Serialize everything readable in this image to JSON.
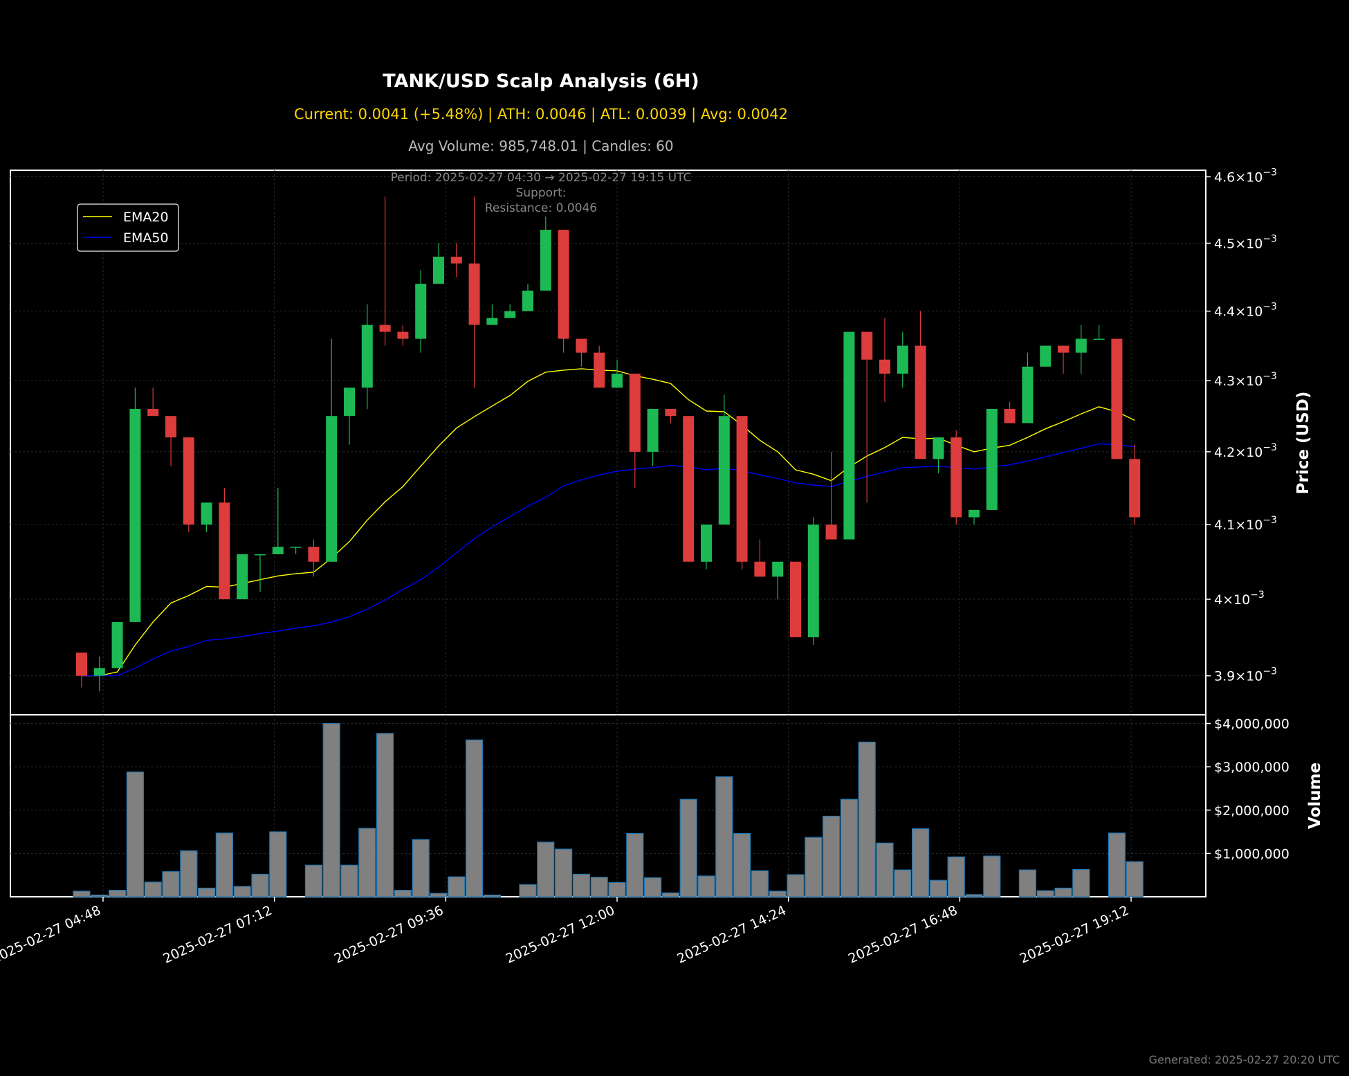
{
  "title": "TANK/USD Scalp Analysis (6H)",
  "subtitle": "Current: 0.0041 (+5.48%) | ATH: 0.0046 | ATL: 0.0039 | Avg: 0.0042",
  "subtitle2": "Avg Volume: 985,748.01 | Candles: 60",
  "annotation": {
    "period": "Period: 2025-02-27 04:30 → 2025-02-27 19:15 UTC",
    "support": "Support:",
    "resistance": "Resistance: 0.0046"
  },
  "footer": "Generated: 2025-02-27 20:20 UTC",
  "colors": {
    "background": "#000000",
    "up": "#1db954",
    "down": "#dc3c3c",
    "ema20": "#ffff00",
    "ema50": "#0000ff",
    "volume_fill": "#808080",
    "volume_edge": "#1f77b4",
    "subtitle": "#ffd700",
    "subtitle2": "#bbbbbb",
    "annotation": "#888888",
    "footer": "#777777"
  },
  "chart_data": [
    {
      "type": "candlestick",
      "ylabel": "Price (USD)",
      "yscale": "log",
      "ylim": [
        0.00385,
        0.00461
      ],
      "yticks": [
        {
          "value": 0.0039,
          "mant": "3.9"
        },
        {
          "value": 0.004,
          "mant": "4"
        },
        {
          "value": 0.0041,
          "mant": "4.1"
        },
        {
          "value": 0.0042,
          "mant": "4.2"
        },
        {
          "value": 0.0043,
          "mant": "4.3"
        },
        {
          "value": 0.0044,
          "mant": "4.4"
        },
        {
          "value": 0.0045,
          "mant": "4.5"
        },
        {
          "value": 0.0046,
          "mant": "4.6"
        }
      ],
      "grid": true,
      "legend": {
        "position": "upper-left",
        "entries": [
          "EMA20",
          "EMA50"
        ]
      },
      "candles": [
        {
          "t": "2025-02-27 04:30",
          "o": 0.00393,
          "h": 0.00393,
          "l": 0.003885,
          "c": 0.0039
        },
        {
          "t": "2025-02-27 04:45",
          "o": 0.0039,
          "h": 0.003925,
          "l": 0.00388,
          "c": 0.00391
        },
        {
          "t": "2025-02-27 05:00",
          "o": 0.00391,
          "h": 0.00397,
          "l": 0.00391,
          "c": 0.00397
        },
        {
          "t": "2025-02-27 05:15",
          "o": 0.00397,
          "h": 0.00429,
          "l": 0.00397,
          "c": 0.00426
        },
        {
          "t": "2025-02-27 05:30",
          "o": 0.00426,
          "h": 0.00429,
          "l": 0.00425,
          "c": 0.00425
        },
        {
          "t": "2025-02-27 05:45",
          "o": 0.00425,
          "h": 0.00425,
          "l": 0.00418,
          "c": 0.00422
        },
        {
          "t": "2025-02-27 06:00",
          "o": 0.00422,
          "h": 0.00422,
          "l": 0.00409,
          "c": 0.0041
        },
        {
          "t": "2025-02-27 06:15",
          "o": 0.0041,
          "h": 0.00413,
          "l": 0.00409,
          "c": 0.00413
        },
        {
          "t": "2025-02-27 06:30",
          "o": 0.00413,
          "h": 0.00415,
          "l": 0.004,
          "c": 0.004
        },
        {
          "t": "2025-02-27 06:45",
          "o": 0.004,
          "h": 0.00406,
          "l": 0.004,
          "c": 0.00406
        },
        {
          "t": "2025-02-27 07:00",
          "o": 0.00406,
          "h": 0.00406,
          "l": 0.00401,
          "c": 0.00406
        },
        {
          "t": "2025-02-27 07:15",
          "o": 0.00406,
          "h": 0.00415,
          "l": 0.00406,
          "c": 0.00407
        },
        {
          "t": "2025-02-27 07:30",
          "o": 0.00407,
          "h": 0.00407,
          "l": 0.00406,
          "c": 0.00407
        },
        {
          "t": "2025-02-27 07:45",
          "o": 0.00407,
          "h": 0.00408,
          "l": 0.00403,
          "c": 0.00405
        },
        {
          "t": "2025-02-27 08:00",
          "o": 0.00405,
          "h": 0.00436,
          "l": 0.00405,
          "c": 0.00425
        },
        {
          "t": "2025-02-27 08:15",
          "o": 0.00425,
          "h": 0.00429,
          "l": 0.00421,
          "c": 0.00429
        },
        {
          "t": "2025-02-27 08:30",
          "o": 0.00429,
          "h": 0.00441,
          "l": 0.00426,
          "c": 0.00438
        },
        {
          "t": "2025-02-27 08:45",
          "o": 0.00438,
          "h": 0.00457,
          "l": 0.00435,
          "c": 0.00437
        },
        {
          "t": "2025-02-27 09:00",
          "o": 0.00437,
          "h": 0.00438,
          "l": 0.00435,
          "c": 0.00436
        },
        {
          "t": "2025-02-27 09:15",
          "o": 0.00436,
          "h": 0.00446,
          "l": 0.00434,
          "c": 0.00444
        },
        {
          "t": "2025-02-27 09:30",
          "o": 0.00444,
          "h": 0.0045,
          "l": 0.00444,
          "c": 0.00448
        },
        {
          "t": "2025-02-27 09:45",
          "o": 0.00448,
          "h": 0.0045,
          "l": 0.00445,
          "c": 0.00447
        },
        {
          "t": "2025-02-27 10:00",
          "o": 0.00447,
          "h": 0.00457,
          "l": 0.00429,
          "c": 0.00438
        },
        {
          "t": "2025-02-27 10:15",
          "o": 0.00438,
          "h": 0.00441,
          "l": 0.00438,
          "c": 0.00439
        },
        {
          "t": "2025-02-27 10:30",
          "o": 0.00439,
          "h": 0.00441,
          "l": 0.00439,
          "c": 0.0044
        },
        {
          "t": "2025-02-27 10:45",
          "o": 0.0044,
          "h": 0.00444,
          "l": 0.0044,
          "c": 0.00443
        },
        {
          "t": "2025-02-27 11:00",
          "o": 0.00443,
          "h": 0.00454,
          "l": 0.00443,
          "c": 0.00452
        },
        {
          "t": "2025-02-27 11:15",
          "o": 0.00452,
          "h": 0.00452,
          "l": 0.00434,
          "c": 0.00436
        },
        {
          "t": "2025-02-27 11:30",
          "o": 0.00436,
          "h": 0.00436,
          "l": 0.00432,
          "c": 0.00434
        },
        {
          "t": "2025-02-27 11:45",
          "o": 0.00434,
          "h": 0.00435,
          "l": 0.00429,
          "c": 0.00429
        },
        {
          "t": "2025-02-27 12:00",
          "o": 0.00429,
          "h": 0.00433,
          "l": 0.00429,
          "c": 0.00431
        },
        {
          "t": "2025-02-27 12:15",
          "o": 0.00431,
          "h": 0.00431,
          "l": 0.00415,
          "c": 0.0042
        },
        {
          "t": "2025-02-27 12:30",
          "o": 0.0042,
          "h": 0.00426,
          "l": 0.00418,
          "c": 0.00426
        },
        {
          "t": "2025-02-27 12:45",
          "o": 0.00426,
          "h": 0.00426,
          "l": 0.00424,
          "c": 0.00425
        },
        {
          "t": "2025-02-27 13:00",
          "o": 0.00425,
          "h": 0.00425,
          "l": 0.00405,
          "c": 0.00405
        },
        {
          "t": "2025-02-27 13:15",
          "o": 0.00405,
          "h": 0.0041,
          "l": 0.00404,
          "c": 0.0041
        },
        {
          "t": "2025-02-27 13:30",
          "o": 0.0041,
          "h": 0.00428,
          "l": 0.0041,
          "c": 0.00425
        },
        {
          "t": "2025-02-27 13:45",
          "o": 0.00425,
          "h": 0.00425,
          "l": 0.00404,
          "c": 0.00405
        },
        {
          "t": "2025-02-27 14:00",
          "o": 0.00405,
          "h": 0.00408,
          "l": 0.00403,
          "c": 0.00403
        },
        {
          "t": "2025-02-27 14:15",
          "o": 0.00403,
          "h": 0.00405,
          "l": 0.004,
          "c": 0.00405
        },
        {
          "t": "2025-02-27 14:30",
          "o": 0.00405,
          "h": 0.00405,
          "l": 0.00395,
          "c": 0.00395
        },
        {
          "t": "2025-02-27 14:45",
          "o": 0.00395,
          "h": 0.00411,
          "l": 0.00394,
          "c": 0.0041
        },
        {
          "t": "2025-02-27 15:00",
          "o": 0.0041,
          "h": 0.0042,
          "l": 0.00408,
          "c": 0.00408
        },
        {
          "t": "2025-02-27 15:15",
          "o": 0.00408,
          "h": 0.00437,
          "l": 0.00408,
          "c": 0.00437
        },
        {
          "t": "2025-02-27 15:30",
          "o": 0.00437,
          "h": 0.00437,
          "l": 0.00413,
          "c": 0.00433
        },
        {
          "t": "2025-02-27 15:45",
          "o": 0.00433,
          "h": 0.00439,
          "l": 0.00427,
          "c": 0.00431
        },
        {
          "t": "2025-02-27 16:00",
          "o": 0.00431,
          "h": 0.00437,
          "l": 0.00429,
          "c": 0.00435
        },
        {
          "t": "2025-02-27 16:15",
          "o": 0.00435,
          "h": 0.0044,
          "l": 0.00419,
          "c": 0.00419
        },
        {
          "t": "2025-02-27 16:30",
          "o": 0.00419,
          "h": 0.00422,
          "l": 0.00417,
          "c": 0.00422
        },
        {
          "t": "2025-02-27 16:45",
          "o": 0.00422,
          "h": 0.00423,
          "l": 0.0041,
          "c": 0.00411
        },
        {
          "t": "2025-02-27 17:00",
          "o": 0.00411,
          "h": 0.00412,
          "l": 0.0041,
          "c": 0.00412
        },
        {
          "t": "2025-02-27 17:15",
          "o": 0.00412,
          "h": 0.00426,
          "l": 0.00412,
          "c": 0.00426
        },
        {
          "t": "2025-02-27 17:30",
          "o": 0.00426,
          "h": 0.00427,
          "l": 0.00424,
          "c": 0.00424
        },
        {
          "t": "2025-02-27 17:45",
          "o": 0.00424,
          "h": 0.00434,
          "l": 0.00424,
          "c": 0.00432
        },
        {
          "t": "2025-02-27 18:00",
          "o": 0.00432,
          "h": 0.00435,
          "l": 0.00432,
          "c": 0.00435
        },
        {
          "t": "2025-02-27 18:15",
          "o": 0.00435,
          "h": 0.00435,
          "l": 0.00431,
          "c": 0.00434
        },
        {
          "t": "2025-02-27 18:30",
          "o": 0.00434,
          "h": 0.00438,
          "l": 0.00431,
          "c": 0.00436
        },
        {
          "t": "2025-02-27 18:45",
          "o": 0.00436,
          "h": 0.00438,
          "l": 0.00436,
          "c": 0.00436
        },
        {
          "t": "2025-02-27 19:00",
          "o": 0.00436,
          "h": 0.00436,
          "l": 0.00419,
          "c": 0.00419
        },
        {
          "t": "2025-02-27 19:15",
          "o": 0.00419,
          "h": 0.00421,
          "l": 0.0041,
          "c": 0.00411
        }
      ],
      "series": [
        {
          "name": "EMA20",
          "values": [
            0.0039,
            0.0039,
            0.003905,
            0.00394,
            0.00397,
            0.003995,
            0.004005,
            0.004017,
            0.004016,
            0.004021,
            0.004026,
            0.004031,
            0.004034,
            0.004036,
            0.004055,
            0.004077,
            0.004106,
            0.004131,
            0.004152,
            0.00418,
            0.004208,
            0.004233,
            0.004249,
            0.004264,
            0.004279,
            0.004299,
            0.004312,
            0.004315,
            0.004317,
            0.004315,
            0.004314,
            0.004307,
            0.004302,
            0.004296,
            0.004273,
            0.004257,
            0.004256,
            0.004237,
            0.004216,
            0.0042,
            0.004175,
            0.004169,
            0.00416,
            0.004179,
            0.004194,
            0.004206,
            0.00422,
            0.004218,
            0.004219,
            0.004209,
            0.0042,
            0.004205,
            0.004209,
            0.00422,
            0.004232,
            0.004242,
            0.004253,
            0.004263,
            0.004256,
            0.004244
          ]
        },
        {
          "name": "EMA50",
          "values": [
            0.0039,
            0.0039,
            0.0039,
            0.00391,
            0.003922,
            0.003932,
            0.003938,
            0.003946,
            0.003948,
            0.003951,
            0.003955,
            0.003958,
            0.003962,
            0.003965,
            0.00397,
            0.003977,
            0.003987,
            0.003999,
            0.004013,
            0.004026,
            0.004043,
            0.004062,
            0.004081,
            0.004097,
            0.004111,
            0.004125,
            0.004137,
            0.004153,
            0.004161,
            0.004168,
            0.004173,
            0.004176,
            0.004178,
            0.004181,
            0.004179,
            0.004175,
            0.004177,
            0.004174,
            0.004168,
            0.004163,
            0.004157,
            0.004154,
            0.004152,
            0.004159,
            0.004166,
            0.004172,
            0.004178,
            0.004179,
            0.00418,
            0.004178,
            0.004176,
            0.004179,
            0.004182,
            0.004187,
            0.004193,
            0.004199,
            0.004205,
            0.004211,
            0.00421,
            0.004207
          ]
        }
      ]
    },
    {
      "type": "bar",
      "ylabel": "Volume",
      "ylim": [
        0,
        4200000
      ],
      "yticks": [
        "$1,000,000",
        "$2,000,000",
        "$3,000,000",
        "$4,000,000"
      ],
      "ytick_values": [
        1000000,
        2000000,
        3000000,
        4000000
      ],
      "xticks": [
        "2025-02-27 04:48",
        "2025-02-27 07:12",
        "2025-02-27 09:36",
        "2025-02-27 12:00",
        "2025-02-27 14:24",
        "2025-02-27 16:48",
        "2025-02-27 19:12"
      ],
      "values": [
        130000,
        40000,
        150000,
        2880000,
        340000,
        580000,
        1060000,
        200000,
        1470000,
        240000,
        520000,
        1500000,
        0,
        730000,
        4000000,
        730000,
        1580000,
        3770000,
        150000,
        1320000,
        80000,
        460000,
        3620000,
        40000,
        0,
        280000,
        1260000,
        1100000,
        520000,
        450000,
        330000,
        1460000,
        440000,
        90000,
        2250000,
        480000,
        2770000,
        1460000,
        600000,
        130000,
        510000,
        1370000,
        1860000,
        2250000,
        3570000,
        1240000,
        620000,
        1570000,
        380000,
        920000,
        50000,
        940000,
        0,
        620000,
        140000,
        200000,
        630000,
        0,
        1470000,
        810000
      ]
    }
  ]
}
